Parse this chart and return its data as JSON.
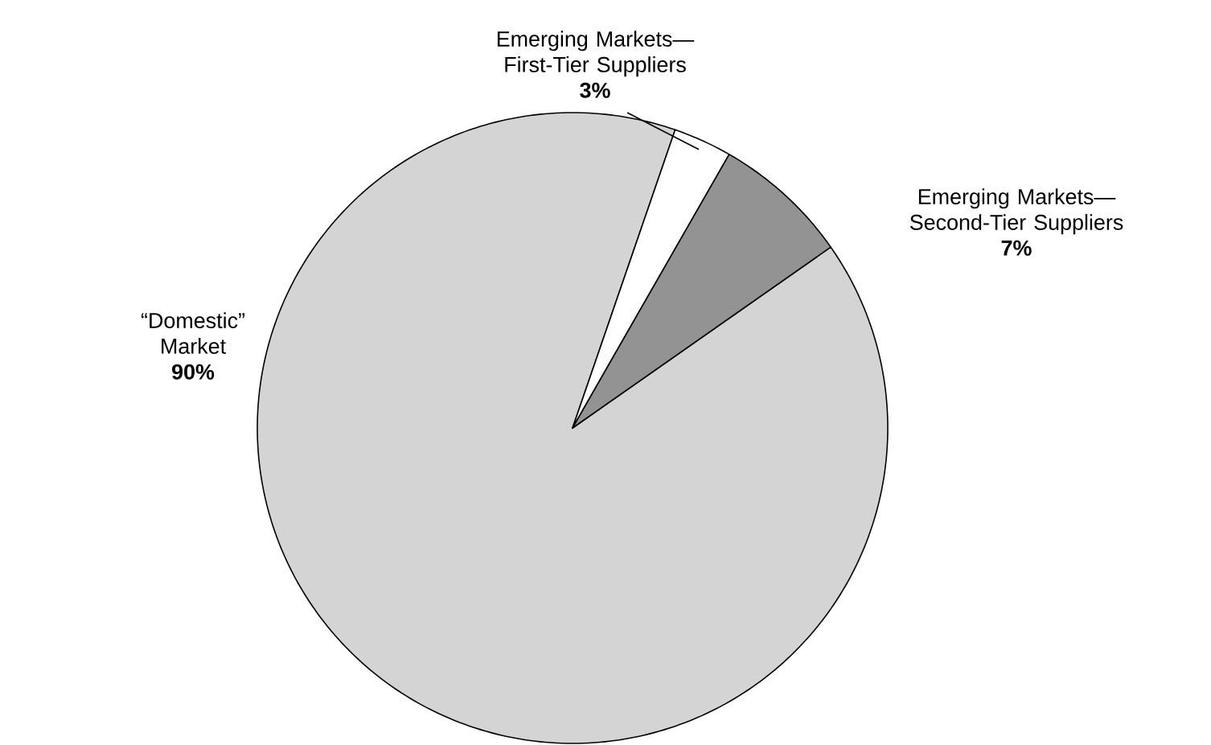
{
  "chart_data": {
    "type": "pie",
    "categories": [
      "“Domestic” Market",
      "Emerging Markets—First-Tier Suppliers",
      "Emerging Markets—Second-Tier Suppliers"
    ],
    "values": [
      90,
      3,
      7
    ],
    "value_labels": [
      "90%",
      "3%",
      "7%"
    ],
    "colors": [
      "#d4d4d4",
      "#ffffff",
      "#939393"
    ]
  }
}
